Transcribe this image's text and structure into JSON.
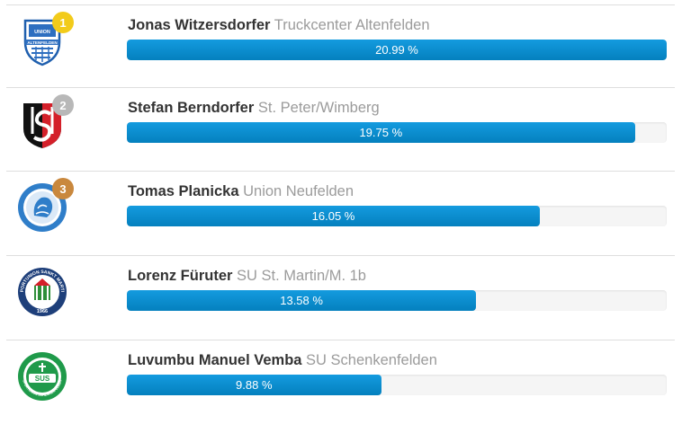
{
  "leaders": [
    {
      "rank": "1",
      "badge": "gold",
      "logo": "union-altenfelden-crest-icon",
      "player": "Jonas Witzersdorfer",
      "club": "Truckcenter Altenfelden",
      "percent_label": "20.99 %",
      "share": 1.0
    },
    {
      "rank": "2",
      "badge": "silver",
      "logo": "st-peter-wimberg-crest-icon",
      "player": "Stefan Berndorfer",
      "club": "St. Peter/Wimberg",
      "percent_label": "19.75 %",
      "share": 0.941
    },
    {
      "rank": "3",
      "badge": "bronze",
      "logo": "union-neufelden-lion-crest-icon",
      "player": "Tomas Planicka",
      "club": "Union Neufelden",
      "percent_label": "16.05 %",
      "share": 0.765
    },
    {
      "rank": "",
      "badge": "",
      "logo": "su-st-martin-crest-icon",
      "player": "Lorenz Füruter",
      "club": "SU St. Martin/M. 1b",
      "percent_label": "13.58 %",
      "share": 0.647
    },
    {
      "rank": "",
      "badge": "",
      "logo": "su-schenkenfelden-crest-icon",
      "player": "Luvumbu Manuel Vemba",
      "club": "SU Schenkenfelden",
      "percent_label": "9.88 %",
      "share": 0.471
    }
  ],
  "logo_texts": {
    "altenfelden": "ALTENFELDEN",
    "union": "UNION",
    "st_martin_ring": "SPORTUNION SANKT MARTIN",
    "st_martin_year": "1966",
    "schenkenfelden_mark": "SUS",
    "schenkenfelden_ring": "SPORTUNION SCHENKENFELDEN"
  },
  "colors": {
    "bar": "#0e8fd0",
    "gold": "#f2cb1b",
    "silver": "#b8b8b8",
    "bronze": "#c9883d"
  }
}
